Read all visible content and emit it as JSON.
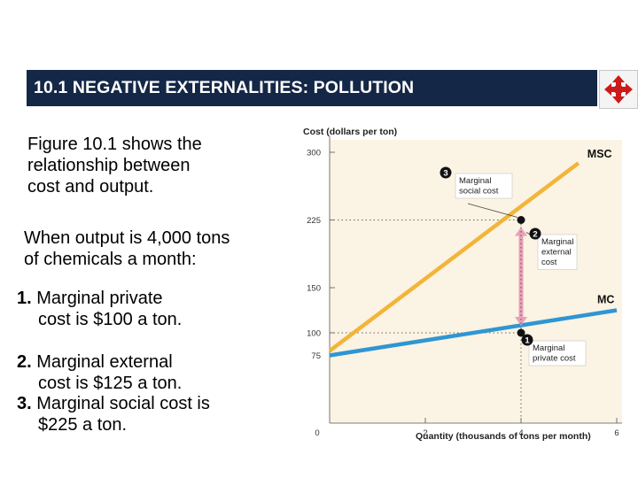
{
  "header": {
    "title": "10.1 NEGATIVE EXTERNALITIES: POLLUTION",
    "nav_icon": "four-way-arrows-icon",
    "banner_color": "#152747"
  },
  "text": {
    "intro": [
      "Figure 10.1 shows the",
      "relationship between",
      "cost and output."
    ],
    "when": [
      "When output is 4,000 tons",
      "of chemicals a month:"
    ],
    "points": [
      {
        "num": "1.",
        "lines": [
          " Marginal private",
          "cost is $100 a ton."
        ]
      },
      {
        "num": "2.",
        "lines": [
          " Marginal external",
          "cost is $125 a ton."
        ]
      },
      {
        "num": "3.",
        "lines": [
          " Marginal social cost is",
          "$225 a ton."
        ]
      }
    ]
  },
  "chart_data": {
    "type": "line",
    "ylabel": "Cost (dollars per ton)",
    "xlabel": "Quantity (thousands of tons per month)",
    "xlim": [
      0,
      6
    ],
    "ylim": [
      0,
      300
    ],
    "xticks": [
      "0",
      "2",
      "4",
      "6"
    ],
    "xtick_values": [
      0,
      2,
      4,
      6
    ],
    "yticks": [
      "75",
      "100",
      "150",
      "225",
      "300"
    ],
    "ytick_values": [
      75,
      100,
      150,
      225,
      300
    ],
    "series": [
      {
        "name": "MSC",
        "color": "#f2b53a",
        "points": [
          [
            0,
            80
          ],
          [
            5.2,
            288
          ]
        ]
      },
      {
        "name": "MC",
        "color": "#2f96d3",
        "points": [
          [
            0,
            75
          ],
          [
            6,
            125
          ]
        ]
      }
    ],
    "highlight_points": [
      [
        4,
        225
      ],
      [
        4,
        100
      ]
    ],
    "external_cost_arrow": {
      "x": 4,
      "from": 100,
      "to": 225,
      "color": "#e8a0b8"
    },
    "annotations": [
      {
        "badge": "1",
        "lines": [
          "Marginal",
          "private cost"
        ]
      },
      {
        "badge": "2",
        "lines": [
          "Marginal",
          "external",
          "cost"
        ]
      },
      {
        "badge": "3",
        "lines": [
          "Marginal",
          "social cost"
        ]
      }
    ],
    "grid": false,
    "plot_background": "#fbf3e3"
  }
}
